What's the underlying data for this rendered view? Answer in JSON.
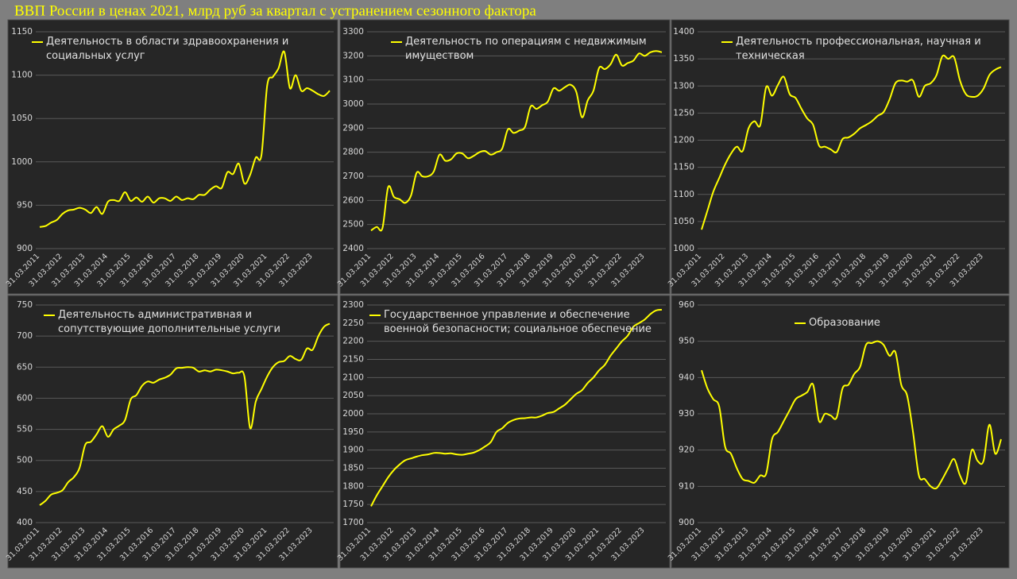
{
  "title": "ВВП России в ценах 2021, млрд руб за квартал с устранением сезонного фактора",
  "chart_data": [
    {
      "type": "line",
      "categories": [
        "31.03.2011",
        null,
        null,
        null,
        "31.03.2012",
        null,
        null,
        null,
        "31.03.2013",
        null,
        null,
        null,
        "31.03.2014",
        null,
        null,
        null,
        "31.03.2015",
        null,
        null,
        null,
        "31.03.2016",
        null,
        null,
        null,
        "31.03.2017",
        null,
        null,
        null,
        "31.03.2018",
        null,
        null,
        null,
        "31.03.2019",
        null,
        null,
        null,
        "31.03.2020",
        null,
        null,
        null,
        "31.03.2021",
        null,
        null,
        null,
        "31.03.2022",
        null,
        null,
        null,
        "31.03.2023",
        null,
        null,
        null
      ],
      "series": [
        {
          "name": "Деятельность в области здравоохранения и социальных услуг",
          "color": "#ffff00",
          "values": [
            925,
            926,
            930,
            933,
            940,
            944,
            945,
            947,
            945,
            941,
            948,
            940,
            954,
            956,
            955,
            965,
            955,
            959,
            954,
            960,
            953,
            958,
            958,
            955,
            960,
            956,
            958,
            957,
            962,
            962,
            968,
            972,
            970,
            988,
            986,
            998,
            975,
            985,
            1005,
            1008,
            1088,
            1098,
            1108,
            1127,
            1085,
            1100,
            1082,
            1085,
            1082,
            1078,
            1076,
            1082
          ]
        }
      ],
      "ylim": [
        900,
        1150
      ],
      "yticks": [
        900,
        950,
        1000,
        1050,
        1100,
        1150
      ],
      "grid": true
    },
    {
      "type": "line",
      "categories": [
        "31.03.2011",
        null,
        null,
        null,
        "31.03.2012",
        null,
        null,
        null,
        "31.03.2013",
        null,
        null,
        null,
        "31.03.2014",
        null,
        null,
        null,
        "31.03.2015",
        null,
        null,
        null,
        "31.03.2016",
        null,
        null,
        null,
        "31.03.2017",
        null,
        null,
        null,
        "31.03.2018",
        null,
        null,
        null,
        "31.03.2019",
        null,
        null,
        null,
        "31.03.2020",
        null,
        null,
        null,
        "31.03.2021",
        null,
        null,
        null,
        "31.03.2022",
        null,
        null,
        null,
        "31.03.2023",
        null,
        null,
        null
      ],
      "series": [
        {
          "name": "Деятельность по операциям с недвижимым имуществом",
          "color": "#ffff00",
          "values": [
            2475,
            2490,
            2485,
            2655,
            2615,
            2605,
            2590,
            2620,
            2715,
            2700,
            2700,
            2720,
            2790,
            2765,
            2770,
            2795,
            2795,
            2775,
            2785,
            2800,
            2805,
            2790,
            2800,
            2815,
            2895,
            2880,
            2890,
            2905,
            2990,
            2980,
            2995,
            3010,
            3065,
            3055,
            3070,
            3080,
            3050,
            2945,
            3015,
            3055,
            3150,
            3145,
            3165,
            3205,
            3160,
            3170,
            3180,
            3210,
            3200,
            3215,
            3220,
            3215
          ]
        }
      ],
      "ylim": [
        2400,
        3300
      ],
      "yticks": [
        2400,
        2500,
        2600,
        2700,
        2800,
        2900,
        3000,
        3100,
        3200,
        3300
      ],
      "grid": true
    },
    {
      "type": "line",
      "categories": [
        "31.03.2011",
        null,
        null,
        null,
        "31.03.2012",
        null,
        null,
        null,
        "31.03.2013",
        null,
        null,
        null,
        "31.03.2014",
        null,
        null,
        null,
        "31.03.2015",
        null,
        null,
        null,
        "31.03.2016",
        null,
        null,
        null,
        "31.03.2017",
        null,
        null,
        null,
        "31.03.2018",
        null,
        null,
        null,
        "31.03.2019",
        null,
        null,
        null,
        "31.03.2020",
        null,
        null,
        null,
        "31.03.2021",
        null,
        null,
        null,
        "31.03.2022",
        null,
        null,
        null,
        "31.03.2023",
        null,
        null,
        null
      ],
      "series": [
        {
          "name": "Деятельность профессиональная, научная и техническая",
          "color": "#ffff00",
          "values": [
            1035,
            1070,
            1105,
            1130,
            1155,
            1175,
            1188,
            1180,
            1222,
            1235,
            1228,
            1298,
            1282,
            1302,
            1317,
            1285,
            1278,
            1258,
            1240,
            1228,
            1190,
            1188,
            1183,
            1178,
            1202,
            1205,
            1212,
            1222,
            1228,
            1235,
            1245,
            1252,
            1275,
            1305,
            1310,
            1308,
            1310,
            1280,
            1300,
            1305,
            1320,
            1355,
            1350,
            1353,
            1310,
            1285,
            1280,
            1282,
            1295,
            1320,
            1330,
            1335
          ]
        }
      ],
      "ylim": [
        1000,
        1400
      ],
      "yticks": [
        1000,
        1050,
        1100,
        1150,
        1200,
        1250,
        1300,
        1350,
        1400
      ],
      "grid": true
    },
    {
      "type": "line",
      "categories": [
        "31.03.2011",
        null,
        null,
        null,
        "31.03.2012",
        null,
        null,
        null,
        "31.03.2013",
        null,
        null,
        null,
        "31.03.2014",
        null,
        null,
        null,
        "31.03.2015",
        null,
        null,
        null,
        "31.03.2016",
        null,
        null,
        null,
        "31.03.2017",
        null,
        null,
        null,
        "31.03.2018",
        null,
        null,
        null,
        "31.03.2019",
        null,
        null,
        null,
        "31.03.2020",
        null,
        null,
        null,
        "31.03.2021",
        null,
        null,
        null,
        "31.03.2022",
        null,
        null,
        null,
        "31.03.2023",
        null,
        null,
        null
      ],
      "series": [
        {
          "name": "Деятельность административная и сопутствующие дополнительные услуги",
          "color": "#ffff00",
          "values": [
            428,
            435,
            445,
            448,
            452,
            465,
            473,
            488,
            525,
            530,
            542,
            555,
            538,
            550,
            556,
            565,
            598,
            605,
            620,
            627,
            625,
            630,
            633,
            638,
            648,
            649,
            650,
            649,
            643,
            645,
            643,
            646,
            645,
            643,
            640,
            641,
            635,
            552,
            595,
            615,
            635,
            650,
            658,
            660,
            668,
            663,
            662,
            680,
            678,
            700,
            715,
            720
          ]
        }
      ],
      "ylim": [
        400,
        750
      ],
      "yticks": [
        400,
        450,
        500,
        550,
        600,
        650,
        700,
        750
      ],
      "grid": true
    },
    {
      "type": "line",
      "categories": [
        "31.03.2011",
        null,
        null,
        null,
        "31.03.2012",
        null,
        null,
        null,
        "31.03.2013",
        null,
        null,
        null,
        "31.03.2014",
        null,
        null,
        null,
        "31.03.2015",
        null,
        null,
        null,
        "31.03.2016",
        null,
        null,
        null,
        "31.03.2017",
        null,
        null,
        null,
        "31.03.2018",
        null,
        null,
        null,
        "31.03.2019",
        null,
        null,
        null,
        "31.03.2020",
        null,
        null,
        null,
        "31.03.2021",
        null,
        null,
        null,
        "31.03.2022",
        null,
        null,
        null,
        "31.03.2023",
        null,
        null,
        null
      ],
      "series": [
        {
          "name": "Государственное управление и обеспечение военной безопасности; социальное обеспечение",
          "color": "#ffff00",
          "values": [
            1745,
            1775,
            1800,
            1825,
            1845,
            1860,
            1872,
            1877,
            1882,
            1886,
            1888,
            1892,
            1892,
            1890,
            1891,
            1888,
            1887,
            1890,
            1893,
            1900,
            1910,
            1922,
            1950,
            1960,
            1975,
            1983,
            1987,
            1988,
            1990,
            1990,
            1995,
            2002,
            2005,
            2015,
            2025,
            2040,
            2055,
            2065,
            2085,
            2100,
            2120,
            2135,
            2160,
            2180,
            2200,
            2215,
            2240,
            2250,
            2260,
            2275,
            2285,
            2287
          ]
        }
      ],
      "ylim": [
        1700,
        2300
      ],
      "yticks": [
        1700,
        1750,
        1800,
        1850,
        1900,
        1950,
        2000,
        2050,
        2100,
        2150,
        2200,
        2250,
        2300
      ],
      "grid": true
    },
    {
      "type": "line",
      "categories": [
        "31.03.2011",
        null,
        null,
        null,
        "31.03.2012",
        null,
        null,
        null,
        "31.03.2013",
        null,
        null,
        null,
        "31.03.2014",
        null,
        null,
        null,
        "31.03.2015",
        null,
        null,
        null,
        "31.03.2016",
        null,
        null,
        null,
        "31.03.2017",
        null,
        null,
        null,
        "31.03.2018",
        null,
        null,
        null,
        "31.03.2019",
        null,
        null,
        null,
        "31.03.2020",
        null,
        null,
        null,
        "31.03.2021",
        null,
        null,
        null,
        "31.03.2022",
        null,
        null,
        null,
        "31.03.2023",
        null,
        null,
        null
      ],
      "series": [
        {
          "name": "Образование",
          "color": "#ffff00",
          "values": [
            942,
            937,
            934,
            932,
            921,
            919,
            915,
            912,
            911.5,
            911,
            913,
            913.5,
            923,
            925,
            928,
            931,
            934,
            935,
            936,
            938,
            928,
            930,
            929.5,
            929,
            937,
            938,
            941,
            943,
            949,
            949.5,
            950,
            949,
            946,
            947,
            938,
            935,
            925,
            913,
            912,
            910,
            909.5,
            912,
            915,
            917.5,
            913,
            911,
            920,
            917,
            917,
            927,
            919,
            923
          ]
        }
      ],
      "ylim": [
        900,
        960
      ],
      "yticks": [
        900,
        910,
        920,
        930,
        940,
        950,
        960
      ],
      "grid": true
    }
  ]
}
